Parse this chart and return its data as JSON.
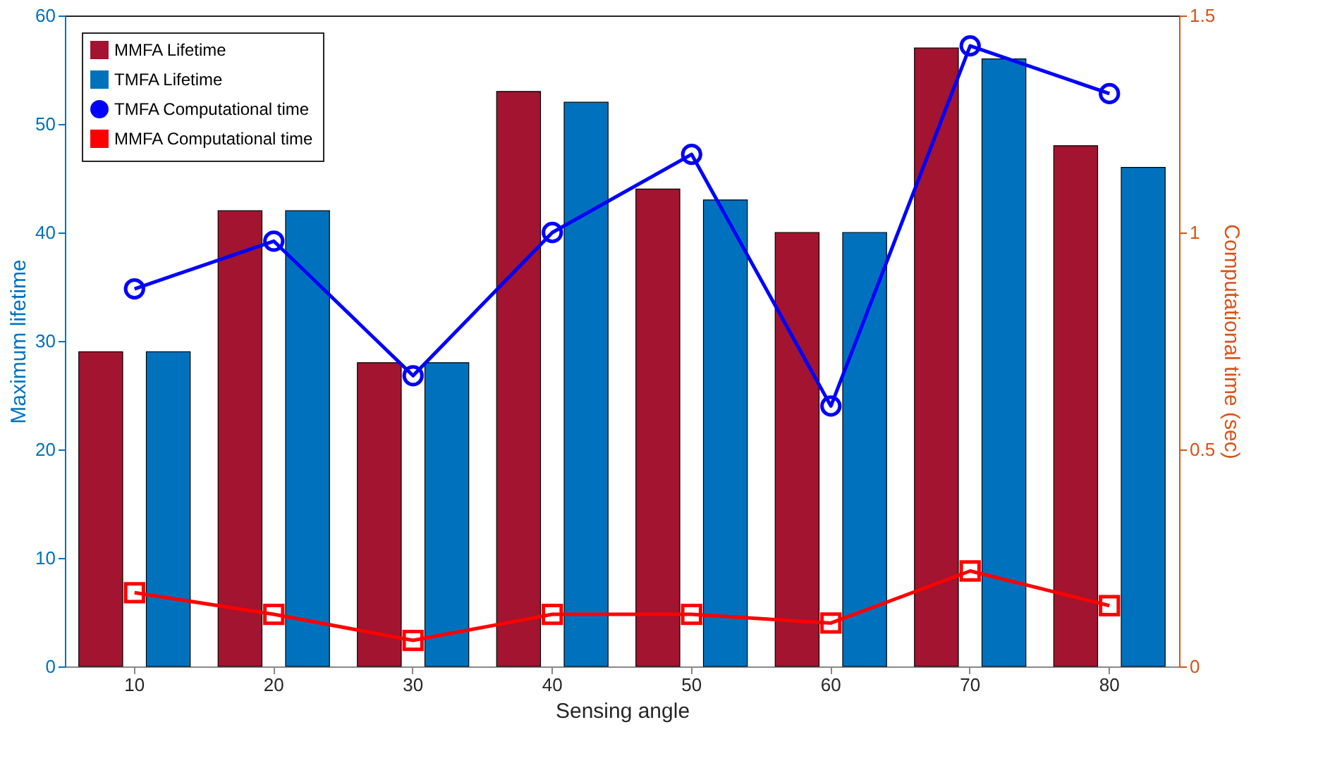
{
  "chart_data": {
    "type": "bar",
    "xlabel": "Sensing angle",
    "ylabel": "Maximum lifetime",
    "y2label": "Computational time (sec)",
    "categories": [
      "10",
      "20",
      "30",
      "40",
      "50",
      "60",
      "70",
      "80"
    ],
    "series": [
      {
        "name": "MMFA Lifetime",
        "color": "#a2142f",
        "values": [
          29,
          42,
          28,
          53,
          44,
          40,
          57,
          48
        ]
      },
      {
        "name": "TMFA Lifetime",
        "color": "#0072bd",
        "values": [
          29,
          42,
          28,
          52,
          43,
          40,
          56,
          46
        ]
      },
      {
        "name": "TMFA Computational time",
        "type": "line",
        "axis": "y2",
        "marker": "circle",
        "color": "#0000ff",
        "values": [
          0.87,
          0.98,
          0.67,
          1.0,
          1.18,
          0.6,
          1.43,
          1.32
        ]
      },
      {
        "name": "MMFA Computational time",
        "type": "line",
        "axis": "y2",
        "marker": "square",
        "color": "#ff0000",
        "values": [
          0.17,
          0.12,
          0.06,
          0.12,
          0.12,
          0.1,
          0.22,
          0.14
        ]
      }
    ],
    "ylim": [
      0,
      60
    ],
    "yticks": [
      0,
      10,
      20,
      30,
      40,
      50,
      60
    ],
    "y2lim": [
      0,
      1.5
    ],
    "y2ticks": [
      0,
      0.5,
      1,
      1.5
    ],
    "grid": false,
    "legend": "top left"
  }
}
